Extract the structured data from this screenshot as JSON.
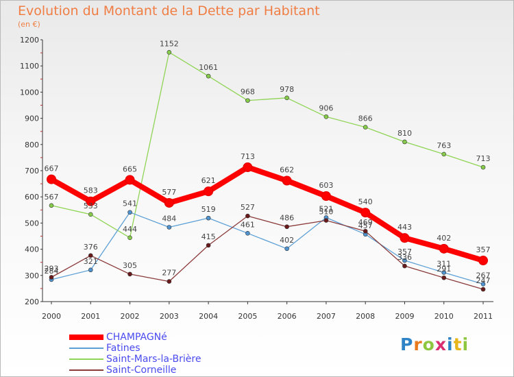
{
  "title": "Evolution du Montant de la Dette par Habitant",
  "subtitle": "(en €)",
  "logo": {
    "text": "Proxiti",
    "letters": [
      "P",
      "r",
      "o",
      "x",
      "i",
      "t",
      "i"
    ]
  },
  "chart_data": {
    "type": "line",
    "title": "Evolution du Montant de la Dette par Habitant",
    "subtitle": "(en €)",
    "xlabel": "",
    "ylabel": "",
    "x": [
      "2000",
      "2001",
      "2002",
      "2003",
      "2004",
      "2005",
      "2006",
      "2007",
      "2008",
      "2009",
      "2010",
      "2011"
    ],
    "ylim": [
      200,
      1200
    ],
    "yticks": [
      200,
      300,
      400,
      500,
      600,
      700,
      800,
      900,
      1000,
      1100,
      1200
    ],
    "grid": false,
    "legend": "bottom-left",
    "series": [
      {
        "name": "CHAMPAGNé",
        "color": "#ff0000",
        "values": [
          667,
          583,
          665,
          577,
          621,
          713,
          662,
          603,
          540,
          443,
          402,
          357
        ]
      },
      {
        "name": "Fatines",
        "color": "#5da0d6",
        "values": [
          284,
          321,
          541,
          484,
          519,
          461,
          402,
          521,
          457,
          357,
          311,
          267
        ]
      },
      {
        "name": "Saint-Mars-la-Brière",
        "color": "#8fd454",
        "values": [
          567,
          533,
          444,
          1152,
          1061,
          968,
          978,
          906,
          866,
          810,
          763,
          713
        ]
      },
      {
        "name": "Saint-Corneille",
        "color": "#8b3a3a",
        "values": [
          293,
          376,
          305,
          277,
          415,
          527,
          486,
          510,
          469,
          336,
          291,
          247
        ]
      }
    ]
  }
}
